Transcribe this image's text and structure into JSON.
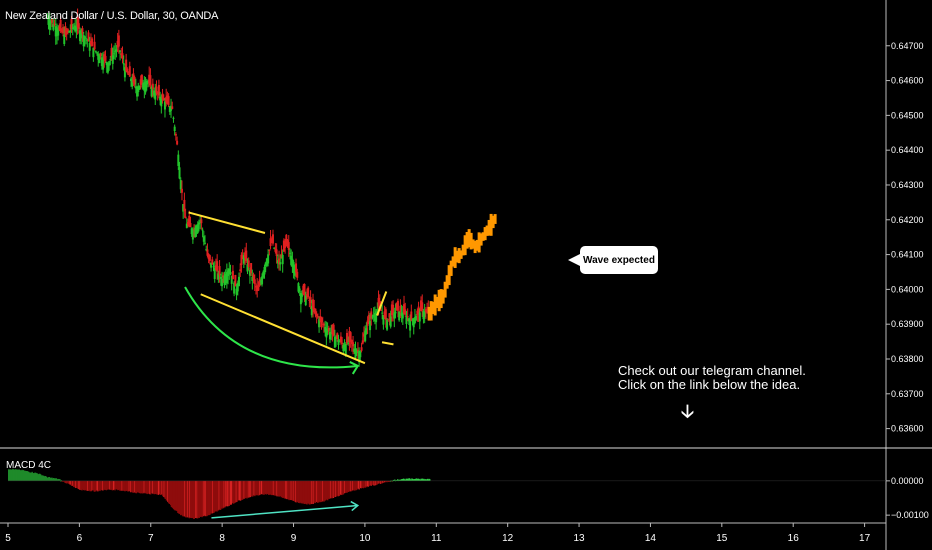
{
  "chart_data": {
    "type": "candlestick",
    "symbol_title": "New Zealand Dollar / U.S. Dollar, 30, OANDA",
    "price_axis": {
      "ticks": [
        "0.64700",
        "0.64600",
        "0.64500",
        "0.64400",
        "0.64300",
        "0.64200",
        "0.64100",
        "0.64000",
        "0.63900",
        "0.63800",
        "0.63700",
        "0.63600"
      ],
      "ylim": [
        0.6355,
        0.6482
      ]
    },
    "time_axis": {
      "ticks": [
        "5",
        "6",
        "7",
        "8",
        "9",
        "10",
        "11",
        "12",
        "13",
        "14",
        "15",
        "16",
        "17"
      ],
      "xlim": [
        5.0,
        17.3
      ]
    },
    "price_path": [
      [
        5.55,
        0.6478
      ],
      [
        5.8,
        0.6473
      ],
      [
        5.95,
        0.6476
      ],
      [
        6.1,
        0.6472
      ],
      [
        6.25,
        0.6468
      ],
      [
        6.4,
        0.6465
      ],
      [
        6.55,
        0.647
      ],
      [
        6.65,
        0.6463
      ],
      [
        6.8,
        0.6458
      ],
      [
        6.95,
        0.646
      ],
      [
        7.05,
        0.6457
      ],
      [
        7.15,
        0.6455
      ],
      [
        7.3,
        0.6452
      ],
      [
        7.38,
        0.644
      ],
      [
        7.45,
        0.6425
      ],
      [
        7.5,
        0.6419
      ],
      [
        7.6,
        0.6417
      ],
      [
        7.7,
        0.642
      ],
      [
        7.8,
        0.6409
      ],
      [
        8.0,
        0.6403
      ],
      [
        8.1,
        0.6406
      ],
      [
        8.2,
        0.64
      ],
      [
        8.3,
        0.641
      ],
      [
        8.4,
        0.6405
      ],
      [
        8.5,
        0.6399
      ],
      [
        8.6,
        0.6407
      ],
      [
        8.7,
        0.6414
      ],
      [
        8.8,
        0.6407
      ],
      [
        8.9,
        0.6413
      ],
      [
        9.0,
        0.6408
      ],
      [
        9.1,
        0.6399
      ],
      [
        9.2,
        0.6398
      ],
      [
        9.3,
        0.6393
      ],
      [
        9.45,
        0.6389
      ],
      [
        9.6,
        0.6386
      ],
      [
        9.7,
        0.6384
      ],
      [
        9.8,
        0.6385
      ],
      [
        9.85,
        0.6383
      ],
      [
        9.95,
        0.6382
      ],
      [
        10.0,
        0.6388
      ],
      [
        10.1,
        0.6392
      ],
      [
        10.2,
        0.6395
      ],
      [
        10.3,
        0.6391
      ],
      [
        10.45,
        0.6394
      ],
      [
        10.55,
        0.6393
      ],
      [
        10.65,
        0.6391
      ],
      [
        10.8,
        0.6394
      ],
      [
        10.9,
        0.6393
      ]
    ],
    "projection": [
      [
        10.9,
        0.6393
      ],
      [
        11.0,
        0.6396
      ],
      [
        11.1,
        0.6398
      ],
      [
        11.15,
        0.6402
      ],
      [
        11.25,
        0.6409
      ],
      [
        11.35,
        0.641
      ],
      [
        11.45,
        0.6415
      ],
      [
        11.55,
        0.6412
      ],
      [
        11.65,
        0.6415
      ],
      [
        11.75,
        0.6418
      ],
      [
        11.85,
        0.6421
      ]
    ],
    "annotations": {
      "bubble_text": "Wave expected",
      "note_line1": "Check out our telegram channel.",
      "note_line2": "Click on the link below the idea."
    },
    "macd": {
      "title": "MACD 4C",
      "ticks": [
        "0.00000",
        "−0.00100"
      ],
      "ylim": [
        -0.0012,
        0.0009
      ],
      "histogram": [
        [
          5.0,
          0.00035
        ],
        [
          5.2,
          0.0003
        ],
        [
          5.4,
          0.00022
        ],
        [
          5.55,
          0.0001
        ],
        [
          5.7,
          5e-05
        ],
        [
          5.85,
          -0.0001
        ],
        [
          6.0,
          -0.00025
        ],
        [
          6.2,
          -0.0003
        ],
        [
          6.4,
          -0.00025
        ],
        [
          6.6,
          -0.00028
        ],
        [
          6.8,
          -0.00035
        ],
        [
          7.0,
          -0.00038
        ],
        [
          7.15,
          -0.0004
        ],
        [
          7.3,
          -0.0008
        ],
        [
          7.45,
          -0.00105
        ],
        [
          7.6,
          -0.0011
        ],
        [
          7.8,
          -0.001
        ],
        [
          8.0,
          -0.0008
        ],
        [
          8.2,
          -0.0006
        ],
        [
          8.4,
          -0.00045
        ],
        [
          8.6,
          -0.00038
        ],
        [
          8.8,
          -0.00045
        ],
        [
          9.0,
          -0.0006
        ],
        [
          9.2,
          -0.00068
        ],
        [
          9.4,
          -0.0006
        ],
        [
          9.6,
          -0.00045
        ],
        [
          9.8,
          -0.0003
        ],
        [
          10.0,
          -0.00018
        ],
        [
          10.2,
          -8e-05
        ],
        [
          10.4,
          2e-05
        ],
        [
          10.6,
          6e-05
        ],
        [
          10.75,
          5e-05
        ],
        [
          10.9,
          4e-05
        ]
      ]
    }
  }
}
